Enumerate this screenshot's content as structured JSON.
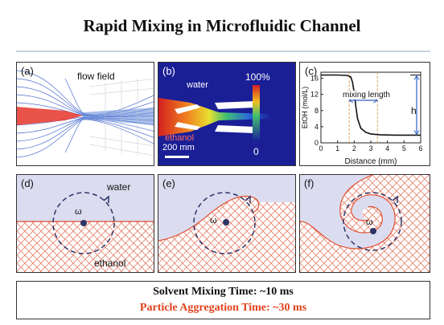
{
  "title": "Rapid Mixing in Microfluidic Channel",
  "panels": {
    "a": {
      "label": "(a)",
      "annotation": "flow field"
    },
    "b": {
      "label": "(b)",
      "water": "water",
      "ethanol": "ethanol",
      "scale": "200 mm",
      "cbar_top": "100%",
      "cbar_bottom": "0"
    },
    "c": {
      "label": "(c)",
      "annotation": "mixing length",
      "h_label": "h"
    },
    "d": {
      "label": "(d)",
      "water": "water",
      "ethanol": "ethanol",
      "omega": "ω"
    },
    "e": {
      "label": "(e)",
      "omega": "ω"
    },
    "f": {
      "label": "(f)",
      "omega": "ω"
    }
  },
  "chart_data": {
    "type": "line",
    "xlabel": "Distance (mm)",
    "ylabel": "EtOH (mol/L)",
    "xlim": [
      0,
      6
    ],
    "ylim": [
      0,
      17.5
    ],
    "xticks": [
      "0",
      "1",
      "2",
      "3",
      "4",
      "5",
      "6"
    ],
    "yticks": [
      "0",
      "4",
      "8",
      "12",
      "16"
    ],
    "x": [
      0,
      1.0,
      1.6,
      1.8,
      1.9,
      2.0,
      2.1,
      2.2,
      2.4,
      2.7,
      3.0,
      3.5,
      4.5,
      5.0,
      6.0
    ],
    "y": [
      16.8,
      16.8,
      16.7,
      16.3,
      15.0,
      12.5,
      9.0,
      6.0,
      3.6,
      2.6,
      2.2,
      2.0,
      1.9,
      1.9,
      1.9
    ],
    "dashed_lines_x": [
      1.7,
      3.4
    ],
    "arrow_level": 16.8,
    "annotation": "mixing length"
  },
  "summary": {
    "line1": "Solvent Mixing Time: ~10 ms",
    "line2": "Particle Aggregation Time: ~30 ms"
  },
  "colors": {
    "water_fill": "#dcdcf0",
    "ethanol_hatch": "#e8806c",
    "interface": "#e05030",
    "vortex": "#2c3566"
  }
}
